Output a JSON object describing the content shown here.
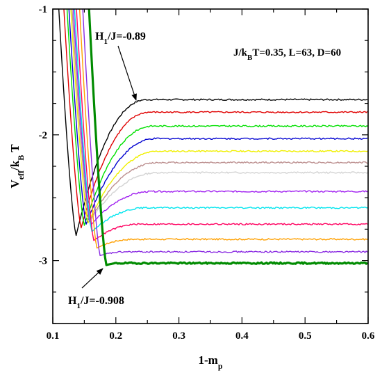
{
  "chart_data": {
    "type": "line",
    "xlabel": {
      "main": "1-m",
      "sub": "p"
    },
    "ylabel": {
      "main": "V",
      "sub1": "eff",
      "mid": "/k",
      "sub2": "B",
      "end": " T"
    },
    "xlim": [
      0.1,
      0.6
    ],
    "ylim": [
      -3.5,
      -1.0
    ],
    "x_ticks": [
      0.1,
      0.2,
      0.3,
      0.4,
      0.5,
      0.6
    ],
    "x_tick_labels": [
      "0.1",
      "0.2",
      "0.3",
      "0.4",
      "0.5",
      "0.6"
    ],
    "y_ticks": [
      -1,
      -2,
      -3
    ],
    "y_tick_labels": [
      "-1",
      "-2",
      "-3"
    ],
    "grid": false,
    "parameters": "J/k",
    "parameters_sub": "B",
    "parameters_rest": "T=0.35, L=63, D=60",
    "annotation_top": {
      "pre": "H",
      "sub": "1",
      "post": "/J=-0.89",
      "arrow_to": [
        0.234,
        -1.73
      ]
    },
    "annotation_bottom": {
      "pre": "H",
      "sub": "1",
      "post": "/J=-0.908",
      "arrow_to": [
        0.195,
        -3.02
      ]
    },
    "series": [
      {
        "color": "#000000",
        "plateau": -1.72,
        "x_min": 0.137,
        "y_min": -2.8,
        "x_sat": 0.25
      },
      {
        "color": "#e00000",
        "plateau": -1.82,
        "x_min": 0.145,
        "y_min": -2.74,
        "x_sat": 0.255
      },
      {
        "color": "#00e000",
        "plateau": -1.93,
        "x_min": 0.15,
        "y_min": -2.72,
        "x_sat": 0.26
      },
      {
        "color": "#0000d0",
        "plateau": -2.03,
        "x_min": 0.153,
        "y_min": -2.71,
        "x_sat": 0.265
      },
      {
        "color": "#f0f000",
        "plateau": -2.13,
        "x_min": 0.156,
        "y_min": -2.7,
        "x_sat": 0.27
      },
      {
        "color": "#bc8f8f",
        "plateau": -2.22,
        "x_min": 0.158,
        "y_min": -2.69,
        "x_sat": 0.27
      },
      {
        "color": "#d3d3d3",
        "plateau": -2.3,
        "x_min": 0.16,
        "y_min": -2.68,
        "x_sat": 0.27
      },
      {
        "color": "#a020f0",
        "plateau": -2.45,
        "x_min": 0.16,
        "y_min": -2.72,
        "x_sat": 0.26
      },
      {
        "color": "#00e5ee",
        "plateau": -2.58,
        "x_min": 0.162,
        "y_min": -2.77,
        "x_sat": 0.25
      },
      {
        "color": "#ff0060",
        "plateau": -2.71,
        "x_min": 0.165,
        "y_min": -2.84,
        "x_sat": 0.24
      },
      {
        "color": "#ffa000",
        "plateau": -2.83,
        "x_min": 0.17,
        "y_min": -2.9,
        "x_sat": 0.23
      },
      {
        "color": "#8a2be2",
        "plateau": -2.93,
        "x_min": 0.175,
        "y_min": -2.96,
        "x_sat": 0.22
      },
      {
        "color": "#008b00",
        "plateau": -3.02,
        "x_min": 0.185,
        "y_min": -3.035,
        "x_sat": 0.21,
        "bold": true
      }
    ]
  }
}
